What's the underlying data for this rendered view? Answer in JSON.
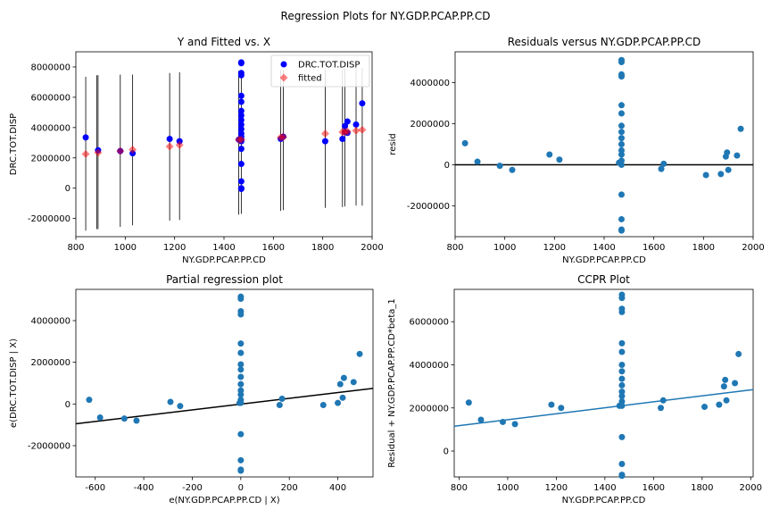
{
  "figure": {
    "suptitle": "Regression Plots for NY.GDP.PCAP.PP.CD"
  },
  "chart_data": [
    {
      "type": "scatter",
      "title": "Y and Fitted vs. X",
      "xlabel": "NY.GDP.PCAP.PP.CD",
      "ylabel": "DRC.TOT.DISP",
      "xlim": [
        800,
        2000
      ],
      "ylim": [
        -3200000,
        9000000
      ],
      "xticks": [
        800,
        1000,
        1200,
        1400,
        1600,
        1800,
        2000
      ],
      "yticks": [
        -2000000,
        0,
        2000000,
        4000000,
        6000000,
        8000000
      ],
      "legend": {
        "position": "upper right",
        "entries": [
          "DRC.TOT.DISP",
          "fitted"
        ]
      },
      "series": [
        {
          "name": "DRC.TOT.DISP",
          "color": "#0000ff",
          "marker": "circle",
          "points": [
            [
              840,
              3350000
            ],
            [
              890,
              2500000
            ],
            [
              980,
              2450000
            ],
            [
              1030,
              2300000
            ],
            [
              1180,
              3250000
            ],
            [
              1220,
              3100000
            ],
            [
              1460,
              3200000
            ],
            [
              1470,
              8300000
            ],
            [
              1470,
              8250000
            ],
            [
              1470,
              7600000
            ],
            [
              1470,
              7450000
            ],
            [
              1470,
              6100000
            ],
            [
              1470,
              5700000
            ],
            [
              1470,
              5100000
            ],
            [
              1470,
              4800000
            ],
            [
              1470,
              4500000
            ],
            [
              1470,
              4200000
            ],
            [
              1470,
              3900000
            ],
            [
              1470,
              3600000
            ],
            [
              1470,
              3400000
            ],
            [
              1470,
              3200000
            ],
            [
              1470,
              3100000
            ],
            [
              1470,
              2600000
            ],
            [
              1470,
              1600000
            ],
            [
              1470,
              450000
            ],
            [
              1470,
              0
            ],
            [
              1470,
              -50000
            ],
            [
              1630,
              3250000
            ],
            [
              1640,
              3400000
            ],
            [
              1810,
              3100000
            ],
            [
              1880,
              3250000
            ],
            [
              1890,
              3700000
            ],
            [
              1890,
              4100000
            ],
            [
              1900,
              4400000
            ],
            [
              1900,
              3650000
            ],
            [
              1935,
              4200000
            ],
            [
              1960,
              5600000
            ]
          ]
        },
        {
          "name": "fitted",
          "color": "#ff0000",
          "marker": "diamond",
          "points": [
            [
              840,
              2250000
            ],
            [
              890,
              2350000
            ],
            [
              980,
              2450000
            ],
            [
              1030,
              2550000
            ],
            [
              1180,
              2750000
            ],
            [
              1220,
              2850000
            ],
            [
              1460,
              3200000
            ],
            [
              1470,
              3200000
            ],
            [
              1630,
              3350000
            ],
            [
              1640,
              3380000
            ],
            [
              1810,
              3600000
            ],
            [
              1880,
              3700000
            ],
            [
              1890,
              3720000
            ],
            [
              1900,
              3740000
            ],
            [
              1935,
              3800000
            ],
            [
              1960,
              3850000
            ]
          ]
        }
      ],
      "error_bars": [
        {
          "x": 840,
          "low": -2800000,
          "high": 7350000
        },
        {
          "x": 885,
          "low": -2700000,
          "high": 7450000
        },
        {
          "x": 890,
          "low": -2700000,
          "high": 7450000
        },
        {
          "x": 980,
          "low": -2550000,
          "high": 7500000
        },
        {
          "x": 1030,
          "low": -2450000,
          "high": 7500000
        },
        {
          "x": 1180,
          "low": -2150000,
          "high": 7600000
        },
        {
          "x": 1220,
          "low": -2100000,
          "high": 7650000
        },
        {
          "x": 1460,
          "low": -1750000,
          "high": 7750000
        },
        {
          "x": 1470,
          "low": -1700000,
          "high": 7750000
        },
        {
          "x": 1630,
          "low": -1500000,
          "high": 7800000
        },
        {
          "x": 1640,
          "low": -1450000,
          "high": 7800000
        },
        {
          "x": 1810,
          "low": -1300000,
          "high": 7850000
        },
        {
          "x": 1880,
          "low": -1250000,
          "high": 7900000
        },
        {
          "x": 1890,
          "low": -1200000,
          "high": 7900000
        },
        {
          "x": 1935,
          "low": -1150000,
          "high": 7950000
        },
        {
          "x": 1960,
          "low": -1150000,
          "high": 7950000
        }
      ]
    },
    {
      "type": "scatter",
      "title": "Residuals versus NY.GDP.PCAP.PP.CD",
      "xlabel": "NY.GDP.PCAP.PP.CD",
      "ylabel": "resid",
      "xlim": [
        800,
        2000
      ],
      "ylim": [
        -3500000,
        5500000
      ],
      "xticks": [
        800,
        1000,
        1200,
        1400,
        1600,
        1800,
        2000
      ],
      "yticks": [
        -2000000,
        0,
        2000000,
        4000000
      ],
      "hline": 0,
      "series": [
        {
          "color": "#1f77b4",
          "points": [
            [
              840,
              1050000
            ],
            [
              890,
              150000
            ],
            [
              980,
              -50000
            ],
            [
              1030,
              -250000
            ],
            [
              1180,
              500000
            ],
            [
              1220,
              250000
            ],
            [
              1460,
              100000
            ],
            [
              1470,
              5100000
            ],
            [
              1470,
              5000000
            ],
            [
              1470,
              4400000
            ],
            [
              1470,
              4300000
            ],
            [
              1470,
              2900000
            ],
            [
              1470,
              2500000
            ],
            [
              1470,
              1900000
            ],
            [
              1470,
              1600000
            ],
            [
              1470,
              1300000
            ],
            [
              1470,
              1000000
            ],
            [
              1470,
              700000
            ],
            [
              1470,
              500000
            ],
            [
              1470,
              200000
            ],
            [
              1470,
              0
            ],
            [
              1470,
              -1450000
            ],
            [
              1470,
              -2650000
            ],
            [
              1470,
              -3150000
            ],
            [
              1470,
              -3200000
            ],
            [
              1630,
              -200000
            ],
            [
              1640,
              50000
            ],
            [
              1810,
              -500000
            ],
            [
              1870,
              -450000
            ],
            [
              1890,
              400000
            ],
            [
              1895,
              600000
            ],
            [
              1900,
              -250000
            ],
            [
              1935,
              450000
            ],
            [
              1950,
              1750000
            ]
          ]
        }
      ]
    },
    {
      "type": "scatter",
      "title": "Partial regression plot",
      "xlabel": "e(NY.GDP.PCAP.PP.CD | X)",
      "ylabel": "e(DRC.TOT.DISP | X)",
      "xlim": [
        -680,
        545
      ],
      "ylim": [
        -3500000,
        5500000
      ],
      "xticks": [
        -600,
        -400,
        -200,
        0,
        200,
        400
      ],
      "yticks": [
        -2000000,
        0,
        2000000,
        4000000
      ],
      "fit_line": [
        [
          -680,
          -950000
        ],
        [
          545,
          750000
        ]
      ],
      "series": [
        {
          "color": "#1f77b4",
          "points": [
            [
              -625,
              200000
            ],
            [
              -580,
              -650000
            ],
            [
              -480,
              -700000
            ],
            [
              -430,
              -800000
            ],
            [
              -290,
              100000
            ],
            [
              -250,
              -100000
            ],
            [
              -5,
              50000
            ],
            [
              0,
              5150000
            ],
            [
              0,
              5050000
            ],
            [
              0,
              4450000
            ],
            [
              0,
              4300000
            ],
            [
              0,
              2900000
            ],
            [
              0,
              2450000
            ],
            [
              0,
              1900000
            ],
            [
              0,
              1650000
            ],
            [
              0,
              1300000
            ],
            [
              0,
              950000
            ],
            [
              0,
              650000
            ],
            [
              0,
              450000
            ],
            [
              0,
              200000
            ],
            [
              0,
              50000
            ],
            [
              0,
              -1450000
            ],
            [
              0,
              -2700000
            ],
            [
              0,
              -3150000
            ],
            [
              0,
              -3200000
            ],
            [
              160,
              -50000
            ],
            [
              170,
              250000
            ],
            [
              340,
              -50000
            ],
            [
              400,
              50000
            ],
            [
              410,
              950000
            ],
            [
              420,
              300000
            ],
            [
              425,
              1250000
            ],
            [
              465,
              1050000
            ],
            [
              490,
              2400000
            ]
          ]
        }
      ]
    },
    {
      "type": "scatter",
      "title": "CCPR Plot",
      "xlabel": "NY.GDP.PCAP.PP.CD",
      "ylabel": "Residual + NY.GDP.PCAP.PP.CD*beta_1",
      "xlim": [
        780,
        2010
      ],
      "ylim": [
        -1200000,
        7500000
      ],
      "xticks": [
        800,
        1000,
        1200,
        1400,
        1600,
        1800,
        2000
      ],
      "yticks": [
        0,
        2000000,
        4000000,
        6000000
      ],
      "fit_line": [
        [
          780,
          1150000
        ],
        [
          2010,
          2850000
        ]
      ],
      "series": [
        {
          "color": "#1f77b4",
          "points": [
            [
              840,
              2250000
            ],
            [
              890,
              1450000
            ],
            [
              980,
              1350000
            ],
            [
              1030,
              1250000
            ],
            [
              1180,
              2150000
            ],
            [
              1220,
              2000000
            ],
            [
              1460,
              2100000
            ],
            [
              1470,
              7250000
            ],
            [
              1470,
              7100000
            ],
            [
              1470,
              6600000
            ],
            [
              1470,
              6450000
            ],
            [
              1470,
              5000000
            ],
            [
              1470,
              4600000
            ],
            [
              1470,
              4000000
            ],
            [
              1470,
              3700000
            ],
            [
              1470,
              3350000
            ],
            [
              1470,
              3050000
            ],
            [
              1470,
              2750000
            ],
            [
              1470,
              2550000
            ],
            [
              1470,
              2300000
            ],
            [
              1470,
              2100000
            ],
            [
              1470,
              650000
            ],
            [
              1470,
              -600000
            ],
            [
              1470,
              -1100000
            ],
            [
              1470,
              -1150000
            ],
            [
              1630,
              2000000
            ],
            [
              1640,
              2350000
            ],
            [
              1810,
              2050000
            ],
            [
              1870,
              2150000
            ],
            [
              1890,
              3000000
            ],
            [
              1895,
              3300000
            ],
            [
              1900,
              2350000
            ],
            [
              1935,
              3150000
            ],
            [
              1950,
              4500000
            ]
          ]
        }
      ]
    }
  ]
}
